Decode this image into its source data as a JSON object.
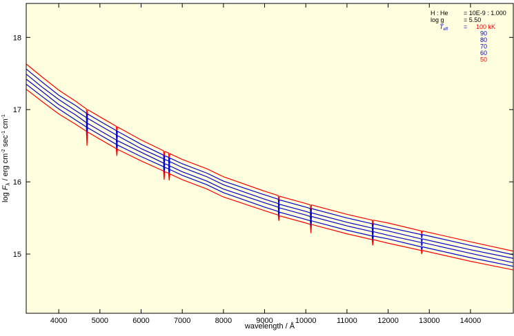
{
  "chart_data": {
    "type": "line",
    "x_label": "wavelength / Å",
    "y_label_parts": [
      "log ",
      "F",
      "λ",
      " / erg cm",
      "-2",
      " sec",
      "-1",
      " cm",
      "-1"
    ],
    "parameters": [
      {
        "label": "H : He",
        "value": "= 10E-9 : 1.000"
      },
      {
        "label": "log g",
        "value": "= 5.50"
      }
    ],
    "teff_symbol": "T",
    "teff_subscript": "eff",
    "teff_equals": "=",
    "xlim": [
      3210,
      15040
    ],
    "ylim": [
      14.18,
      18.47
    ],
    "xticks": [
      4000,
      5000,
      6000,
      7000,
      8000,
      9000,
      10000,
      11000,
      12000,
      13000,
      14000
    ],
    "yticks": [
      15,
      16,
      17,
      18
    ],
    "grid": false,
    "x": [
      3214,
      3600,
      4000,
      4400,
      4671,
      4686,
      4701,
      5000,
      5396,
      5411,
      5426,
      6000,
      6545,
      6560,
      6575,
      6668,
      6683,
      6698,
      7000,
      7600,
      8000,
      9000,
      9330,
      9345,
      9360,
      10000,
      10109,
      10124,
      10139,
      11000,
      11611,
      11626,
      11641,
      12000,
      12802,
      12817,
      12832,
      14000,
      15040
    ],
    "series": [
      {
        "name": "100 kK",
        "color": "#ff0000",
        "values": [
          17.63,
          17.45,
          17.27,
          17.12,
          17.01,
          16.86,
          17.0,
          16.9,
          16.77,
          16.67,
          16.76,
          16.58,
          16.43,
          16.31,
          16.42,
          16.4,
          16.3,
          16.39,
          16.31,
          16.18,
          16.07,
          15.87,
          15.81,
          15.73,
          15.8,
          15.7,
          15.68,
          15.56,
          15.68,
          15.55,
          15.47,
          15.39,
          15.47,
          15.43,
          15.32,
          15.27,
          15.32,
          15.17,
          15.04
        ]
      },
      {
        "name": "90",
        "color": "#0000cc",
        "values": [
          17.56,
          17.38,
          17.2,
          17.06,
          16.95,
          16.8,
          16.94,
          16.84,
          16.71,
          16.61,
          16.7,
          16.52,
          16.37,
          16.25,
          16.36,
          16.34,
          16.24,
          16.33,
          16.25,
          16.12,
          16.01,
          15.82,
          15.76,
          15.68,
          15.75,
          15.65,
          15.63,
          15.51,
          15.63,
          15.5,
          15.42,
          15.34,
          15.42,
          15.37,
          15.27,
          15.22,
          15.27,
          15.12,
          14.99
        ]
      },
      {
        "name": "80",
        "color": "#0000cc",
        "values": [
          17.49,
          17.31,
          17.14,
          16.99,
          16.89,
          16.74,
          16.88,
          16.78,
          16.65,
          16.55,
          16.64,
          16.46,
          16.32,
          16.2,
          16.31,
          16.29,
          16.19,
          16.28,
          16.2,
          16.07,
          15.96,
          15.76,
          15.7,
          15.62,
          15.69,
          15.59,
          15.57,
          15.45,
          15.57,
          15.44,
          15.36,
          15.28,
          15.36,
          15.32,
          15.21,
          15.16,
          15.21,
          15.06,
          14.94
        ]
      },
      {
        "name": "70",
        "color": "#0000cc",
        "values": [
          17.42,
          17.25,
          17.07,
          16.93,
          16.82,
          16.67,
          16.81,
          16.71,
          16.58,
          16.48,
          16.57,
          16.41,
          16.26,
          16.14,
          16.25,
          16.23,
          16.13,
          16.22,
          16.14,
          16.01,
          15.9,
          15.71,
          15.65,
          15.57,
          15.64,
          15.54,
          15.52,
          15.4,
          15.52,
          15.39,
          15.31,
          15.23,
          15.31,
          15.26,
          15.16,
          15.11,
          15.16,
          15.01,
          14.88
        ]
      },
      {
        "name": "60",
        "color": "#0000cc",
        "values": [
          17.35,
          17.18,
          17.01,
          16.86,
          16.76,
          16.61,
          16.75,
          16.65,
          16.52,
          16.42,
          16.51,
          16.35,
          16.21,
          16.09,
          16.2,
          16.18,
          16.08,
          16.17,
          16.09,
          15.96,
          15.85,
          15.65,
          15.59,
          15.51,
          15.58,
          15.48,
          15.46,
          15.34,
          15.46,
          15.33,
          15.25,
          15.17,
          15.25,
          15.21,
          15.1,
          15.05,
          15.1,
          14.95,
          14.83
        ]
      },
      {
        "name": "50",
        "color": "#ff0000",
        "values": [
          17.28,
          17.11,
          16.94,
          16.8,
          16.7,
          16.5,
          16.69,
          16.59,
          16.46,
          16.36,
          16.45,
          16.29,
          16.15,
          16.03,
          16.14,
          16.12,
          16.02,
          16.11,
          16.03,
          15.9,
          15.79,
          15.6,
          15.54,
          15.46,
          15.53,
          15.43,
          15.41,
          15.29,
          15.41,
          15.28,
          15.2,
          15.12,
          15.2,
          15.15,
          15.05,
          15.0,
          15.05,
          14.9,
          14.78
        ]
      }
    ]
  }
}
